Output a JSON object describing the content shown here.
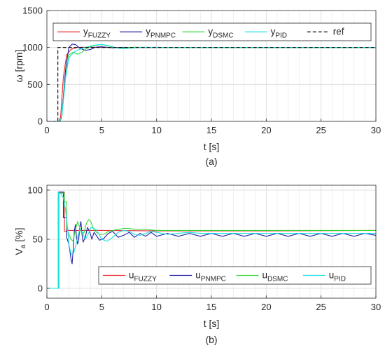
{
  "chart_data": [
    {
      "type": "line",
      "caption": "(a)",
      "xlabel": "t [s]",
      "ylabel": "ω [rpm]",
      "xlim": [
        0,
        30
      ],
      "ylim": [
        0,
        1500
      ],
      "xticks": [
        0,
        5,
        10,
        15,
        20,
        25,
        30
      ],
      "yticks": [
        0,
        500,
        1000,
        1500
      ],
      "grid": true,
      "legend_position": "top",
      "series": [
        {
          "name": "y",
          "sub": "FUZZY",
          "color": "#e8262e",
          "dash": "",
          "x": [
            0,
            1.1,
            1.25,
            1.5,
            1.8,
            2.2,
            2.6,
            3.0,
            3.5,
            4.0,
            5.0,
            6.0,
            8.0,
            10.0,
            15.0,
            20.0,
            25.0,
            30.0
          ],
          "y": [
            0,
            0,
            60,
            600,
            900,
            975,
            995,
            1002,
            1004,
            1003,
            1001,
            1000,
            1000,
            1000,
            1000,
            1000,
            1000,
            1000
          ]
        },
        {
          "name": "y",
          "sub": "PNMPC",
          "color": "#1f1fa8",
          "dash": "",
          "x": [
            0,
            1.2,
            1.35,
            1.7,
            2.0,
            2.3,
            2.6,
            3.0,
            3.5,
            4.0,
            4.5,
            5.0,
            6.0,
            7.0,
            8.0,
            10.0,
            12.0,
            15.0,
            20.0,
            25.0,
            30.0
          ],
          "y": [
            0,
            0,
            60,
            700,
            1000,
            1045,
            1040,
            990,
            960,
            975,
            1005,
            1010,
            995,
            1002,
            998,
            1002,
            998,
            1001,
            999,
            1001,
            999
          ]
        },
        {
          "name": "y",
          "sub": "DSMC",
          "color": "#33d633",
          "dash": "",
          "x": [
            0,
            1.2,
            1.35,
            1.7,
            2.0,
            2.4,
            2.8,
            3.2,
            3.6,
            4.0,
            4.5,
            5.0,
            5.5,
            6.0,
            6.5,
            7.0,
            8.0,
            10.0,
            15.0,
            20.0,
            25.0,
            30.0
          ],
          "y": [
            0,
            0,
            50,
            600,
            900,
            935,
            910,
            935,
            985,
            1010,
            1030,
            1040,
            1025,
            1005,
            990,
            995,
            1003,
            1000,
            1000,
            1000,
            1000,
            1000
          ]
        },
        {
          "name": "y",
          "sub": "PID",
          "color": "#19e0e0",
          "dash": "",
          "x": [
            0,
            1.2,
            1.35,
            1.7,
            2.0,
            2.5,
            3.0,
            3.5,
            4.0,
            4.5,
            5.0,
            5.5,
            6.0,
            6.5,
            7.0,
            8.0,
            9.0,
            10.0,
            12.0,
            15.0,
            20.0,
            25.0,
            30.0
          ],
          "y": [
            0,
            0,
            50,
            580,
            860,
            940,
            975,
            1000,
            1020,
            1035,
            1040,
            1030,
            1010,
            990,
            985,
            995,
            1003,
            1000,
            999,
            1000,
            1000,
            1000,
            1000
          ]
        },
        {
          "name": "ref",
          "sub": "",
          "color": "#000000",
          "dash": "5,3",
          "x": [
            0,
            1.0,
            1.0,
            30.0
          ],
          "y": [
            0,
            0,
            1000,
            1000
          ]
        }
      ]
    },
    {
      "type": "line",
      "caption": "(b)",
      "xlabel": "t [s]",
      "ylabel": "V",
      "ylabel_sub": "a",
      "ylabel_suffix": " [%]",
      "xlim": [
        0,
        30
      ],
      "ylim": [
        -10,
        105
      ],
      "xticks": [
        0,
        5,
        10,
        15,
        20,
        25,
        30
      ],
      "yticks": [
        0,
        50,
        100
      ],
      "grid": true,
      "legend_position": "bottom",
      "series": [
        {
          "name": "u",
          "sub": "FUZZY",
          "color": "#e8262e",
          "dash": "",
          "x": [
            0,
            1.05,
            1.05,
            1.6,
            1.6,
            1.8,
            1.8,
            2.5,
            5.0,
            10.0,
            20.0,
            30.0
          ],
          "y": [
            0,
            0,
            98,
            98,
            58,
            58,
            59,
            59,
            59,
            58.5,
            58.5,
            59
          ]
        },
        {
          "name": "u",
          "sub": "PNMPC",
          "color": "#1f1fa8",
          "dash": "",
          "x": [
            0,
            1.05,
            1.05,
            1.5,
            1.5,
            1.8,
            1.8,
            2.0,
            2.1,
            2.2,
            2.3,
            2.4,
            2.5,
            2.6,
            2.7,
            2.8,
            2.9,
            3.0,
            3.1,
            3.2,
            3.3,
            3.5,
            3.7,
            3.9,
            4.1,
            4.3,
            4.5,
            4.8,
            5.2,
            5.6,
            6.0,
            6.5,
            7.0,
            7.5,
            8.0,
            8.5,
            9.0,
            9.5,
            10.0,
            11.0,
            12.0,
            13.0,
            14.0,
            15.0,
            16.0,
            17.0,
            18.0,
            19.0,
            20.0,
            21.0,
            22.0,
            23.0,
            24.0,
            25.0,
            26.0,
            27.0,
            28.0,
            29.0,
            30.0
          ],
          "y": [
            0,
            0,
            98,
            98,
            72,
            72,
            52,
            45,
            38,
            30,
            25,
            40,
            58,
            65,
            52,
            45,
            50,
            62,
            68,
            55,
            47,
            52,
            62,
            58,
            50,
            57,
            54,
            49,
            51,
            56,
            58,
            52,
            54,
            57,
            52,
            56,
            53,
            57,
            53,
            56,
            53,
            56,
            53,
            56,
            53,
            56,
            53,
            56,
            53,
            56,
            53,
            56,
            53,
            56,
            53,
            56,
            53,
            56,
            54
          ]
        },
        {
          "name": "u",
          "sub": "DSMC",
          "color": "#33d633",
          "dash": "",
          "x": [
            0,
            1.1,
            1.1,
            1.6,
            1.6,
            1.8,
            1.8,
            2.0,
            2.2,
            2.4,
            2.6,
            2.8,
            3.0,
            3.2,
            3.4,
            3.6,
            3.8,
            4.0,
            4.2,
            4.4,
            4.8,
            5.2,
            5.6,
            6.0,
            6.5,
            7.0,
            7.5,
            8.0,
            9.0,
            10.0,
            15.0,
            20.0,
            25.0,
            30.0
          ],
          "y": [
            0,
            0,
            97,
            97,
            88,
            88,
            62,
            55,
            50,
            48,
            60,
            68,
            62,
            55,
            57,
            66,
            70,
            68,
            62,
            58,
            55,
            55,
            58,
            59,
            60,
            61,
            61,
            60,
            60,
            59,
            59,
            59,
            59,
            59
          ]
        },
        {
          "name": "u",
          "sub": "PID",
          "color": "#19e0e0",
          "dash": "",
          "x": [
            0,
            1.05,
            1.05,
            1.3,
            1.5,
            1.7,
            1.9,
            2.0,
            2.2,
            2.4,
            2.6,
            2.8,
            3.0,
            3.2,
            3.5,
            3.8,
            4.0,
            4.5,
            5.0,
            5.5,
            6.0,
            6.5,
            7.0,
            7.5,
            8.0,
            8.5,
            9.0,
            9.5,
            10.0,
            11.0,
            12.0,
            13.0,
            14.0,
            15.0,
            17.0,
            20.0,
            25.0,
            30.0
          ],
          "y": [
            0,
            0,
            98,
            96,
            92,
            80,
            60,
            45,
            35,
            35,
            42,
            52,
            60,
            58,
            50,
            56,
            62,
            60,
            50,
            48,
            52,
            57,
            59,
            58,
            55,
            54,
            56,
            58,
            57,
            55,
            56,
            57,
            56,
            56,
            56,
            56,
            56,
            56
          ]
        }
      ]
    }
  ]
}
